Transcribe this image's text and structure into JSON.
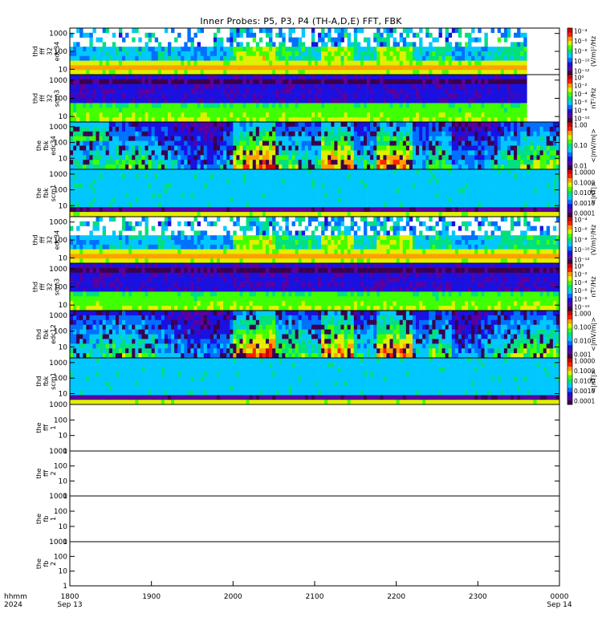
{
  "title": "Inner Probes: P5, P3, P4 (TH-A,D,E) FFT, FBK",
  "time_axis": {
    "corner_label": [
      "hhmm",
      "2024"
    ],
    "ticks": [
      {
        "label": "1800",
        "sub": "Sep 13"
      },
      {
        "label": "1900",
        "sub": ""
      },
      {
        "label": "2000",
        "sub": ""
      },
      {
        "label": "2100",
        "sub": ""
      },
      {
        "label": "2200",
        "sub": ""
      },
      {
        "label": "2300",
        "sub": ""
      },
      {
        "label": "0000",
        "sub": "Sep 14"
      }
    ]
  },
  "colors": {
    "colormap": [
      "#3a0050",
      "#5a00a0",
      "#1a10e0",
      "#0070ff",
      "#00c8ff",
      "#00e080",
      "#40ff00",
      "#e0f000",
      "#ffa000",
      "#ff2000",
      "#d00000"
    ]
  },
  "chart_data": {
    "type": "heatmap",
    "title": "Inner Probes: P5, P3, P4 (TH-A,D,E) FFT, FBK",
    "x_ticks": [
      "1800",
      "1900",
      "2000",
      "2100",
      "2200",
      "2300",
      "0000"
    ],
    "panels": [
      {
        "label": [
          "thd",
          "fff",
          "32",
          "edc34"
        ],
        "yticks": [
          "1000",
          "100",
          "10"
        ],
        "ylim": [
          5,
          2000
        ],
        "log": true,
        "colorbar": {
          "label": "(V/m)²/Hz",
          "ticks": [
            "10⁻⁴",
            "10⁻⁶",
            "10⁻⁸",
            "10⁻¹⁰",
            "10⁻¹²"
          ]
        },
        "data_end": 0.93
      },
      {
        "label": [
          "thd",
          "fff",
          "32",
          "scm3"
        ],
        "yticks": [
          "1000",
          "100",
          "10"
        ],
        "ylim": [
          5,
          2000
        ],
        "log": true,
        "colorbar": {
          "label": "nT²/Hz",
          "ticks": [
            "10⁰",
            "10⁻²",
            "10⁻⁴",
            "10⁻⁶",
            "10⁻⁸",
            "10⁻¹⁰"
          ]
        },
        "data_end": 0.93
      },
      {
        "label": [
          "the",
          "fbk",
          "edc34"
        ],
        "yticks": [
          "1000",
          "100",
          "10"
        ],
        "ylim": [
          2,
          2000
        ],
        "log": true,
        "colorbar": {
          "label": "<|mV/m|>",
          "ticks": [
            "1.00",
            "0.10",
            "0.01"
          ]
        },
        "data_end": 1.0
      },
      {
        "label": [
          "the",
          "fbk",
          "scm1"
        ],
        "yticks": [
          "1000",
          "100",
          "10"
        ],
        "ylim": [
          2,
          2000
        ],
        "log": true,
        "colorbar": {
          "label": "<|nT|>",
          "ticks": [
            "1.0000",
            "0.1000",
            "0.0100",
            "0.0010",
            "0.0001"
          ]
        },
        "data_end": 1.0
      },
      {
        "label": [
          "thd",
          "fff",
          "32",
          "edc34"
        ],
        "yticks": [
          "1000",
          "100",
          "10"
        ],
        "ylim": [
          5,
          2000
        ],
        "log": true,
        "colorbar": {
          "label": "(V/m)²/Hz",
          "ticks": [
            "10⁻⁴",
            "10⁻⁶",
            "10⁻⁸",
            "10⁻¹⁰",
            "10⁻¹²"
          ]
        },
        "data_end": 1.0
      },
      {
        "label": [
          "thd",
          "fff",
          "32",
          "scm3"
        ],
        "yticks": [
          "1000",
          "100",
          "10"
        ],
        "ylim": [
          5,
          2000
        ],
        "log": true,
        "colorbar": {
          "label": "nT²/Hz",
          "ticks": [
            "10⁰",
            "10⁻²",
            "10⁻⁴",
            "10⁻⁶",
            "10⁻⁸",
            "10⁻¹⁰"
          ]
        },
        "data_end": 1.0
      },
      {
        "label": [
          "thd",
          "fbk",
          "edc12"
        ],
        "yticks": [
          "1000",
          "100",
          "10"
        ],
        "ylim": [
          2,
          2000
        ],
        "log": true,
        "colorbar": {
          "label": "<|mV/m|>",
          "ticks": [
            "1.000",
            "0.100",
            "0.010",
            "0.001"
          ]
        },
        "data_end": 1.0
      },
      {
        "label": [
          "thd",
          "fbk",
          "scm1"
        ],
        "yticks": [
          "1000",
          "100",
          "10"
        ],
        "ylim": [
          2,
          2000
        ],
        "log": true,
        "colorbar": {
          "label": "<|nT|>",
          "ticks": [
            "1.0000",
            "0.1000",
            "0.0100",
            "0.0010",
            "0.0001"
          ]
        },
        "data_end": 1.0
      },
      {
        "label": [
          "the",
          "fff",
          "1"
        ],
        "yticks": [
          "1000",
          "100",
          "10",
          "1"
        ],
        "ylim": [
          1,
          1000
        ],
        "log": true,
        "empty": true
      },
      {
        "label": [
          "the",
          "fff",
          "2"
        ],
        "yticks": [
          "1000",
          "100",
          "10",
          "1"
        ],
        "ylim": [
          1,
          1000
        ],
        "log": true,
        "empty": true
      },
      {
        "label": [
          "the",
          "fb",
          "1"
        ],
        "yticks": [
          "1000",
          "100",
          "10",
          "1"
        ],
        "ylim": [
          1,
          1000
        ],
        "log": true,
        "empty": true
      },
      {
        "label": [
          "the",
          "fb",
          "2"
        ],
        "yticks": [
          "1000",
          "100",
          "10",
          "1"
        ],
        "ylim": [
          1,
          1000
        ],
        "log": true,
        "empty": true
      }
    ]
  }
}
